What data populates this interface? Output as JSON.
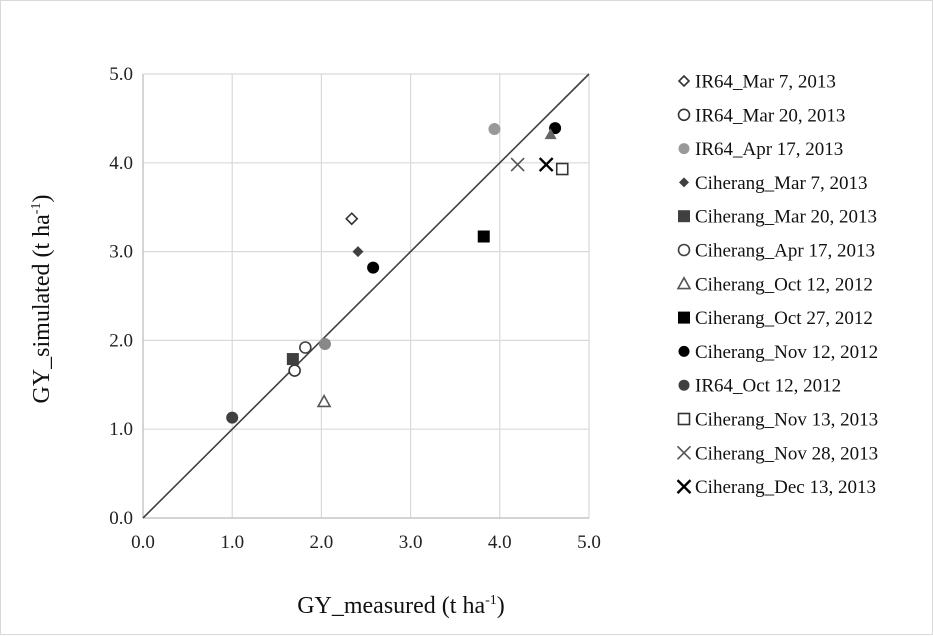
{
  "chart_data": {
    "type": "scatter",
    "xlabel": "GY_measured (t ha",
    "xlabel_sup": "-1",
    "xlabel_end": ")",
    "ylabel": "GY_simulated (t ha",
    "ylabel_sup": "-1",
    "ylabel_end": ")",
    "xlim": [
      0,
      5
    ],
    "ylim": [
      0,
      5
    ],
    "xticks": [
      "0.0",
      "1.0",
      "2.0",
      "3.0",
      "4.0",
      "5.0"
    ],
    "yticks": [
      "0.0",
      "1.0",
      "2.0",
      "3.0",
      "4.0",
      "5.0"
    ],
    "grid": true,
    "reference_line": {
      "from": [
        0,
        0
      ],
      "to": [
        5,
        5
      ]
    },
    "legend_position": "right",
    "series": [
      {
        "name": "IR64_Mar 7, 2013",
        "marker": "diamond-open",
        "color": "#333333",
        "points": [
          [
            2.34,
            3.37
          ]
        ]
      },
      {
        "name": "IR64_Mar 20, 2013",
        "marker": "circle-open",
        "color": "#333333",
        "points": [
          [
            1.7,
            1.66
          ]
        ]
      },
      {
        "name": "IR64_Apr 17, 2013",
        "marker": "circle",
        "color": "#999999",
        "points": [
          [
            3.94,
            4.38
          ]
        ]
      },
      {
        "name": "Ciherang_Mar 7, 2013",
        "marker": "diamond",
        "color": "#404040",
        "points": [
          [
            2.41,
            3.0
          ]
        ]
      },
      {
        "name": "Ciherang_Mar 20, 2013",
        "marker": "square",
        "color": "#404040",
        "points": [
          [
            1.68,
            1.79
          ]
        ]
      },
      {
        "name": "Ciherang_Apr 17, 2013",
        "marker": "circle-open",
        "color": "#404040",
        "points": [
          [
            1.82,
            1.92
          ]
        ]
      },
      {
        "name": "Ciherang_Oct 12, 2012",
        "marker": "triangle-open",
        "color": "#555555",
        "points": [
          [
            2.03,
            1.31
          ]
        ]
      },
      {
        "name": "Ciherang_Oct 27, 2012",
        "marker": "square",
        "color": "#000000",
        "points": [
          [
            3.82,
            3.17
          ]
        ]
      },
      {
        "name": "Ciherang_Nov 12, 2012",
        "marker": "circle",
        "color": "#000000",
        "points": [
          [
            2.58,
            2.82
          ]
        ]
      },
      {
        "name": "IR64_Oct 12, 2012",
        "marker": "circle",
        "color": "#404040",
        "points": [
          [
            1.0,
            1.13
          ]
        ]
      },
      {
        "name": "Ciherang_Nov 13, 2013",
        "marker": "square-open",
        "color": "#333333",
        "points": [
          [
            4.7,
            3.93
          ]
        ]
      },
      {
        "name": "Ciherang_Nov 28, 2013",
        "marker": "x-thin",
        "color": "#555555",
        "points": [
          [
            4.2,
            3.98
          ]
        ]
      },
      {
        "name": "Ciherang_Dec 13, 2013",
        "marker": "x",
        "color": "#000000",
        "points": [
          [
            4.52,
            3.98
          ]
        ]
      }
    ],
    "extra_points": [
      {
        "marker": "circle",
        "color": "#000000",
        "point": [
          4.62,
          4.39
        ]
      },
      {
        "marker": "triangle",
        "color": "#666666",
        "point": [
          4.57,
          4.32
        ]
      },
      {
        "marker": "circle",
        "color": "#888888",
        "point": [
          2.04,
          1.96
        ]
      }
    ]
  }
}
